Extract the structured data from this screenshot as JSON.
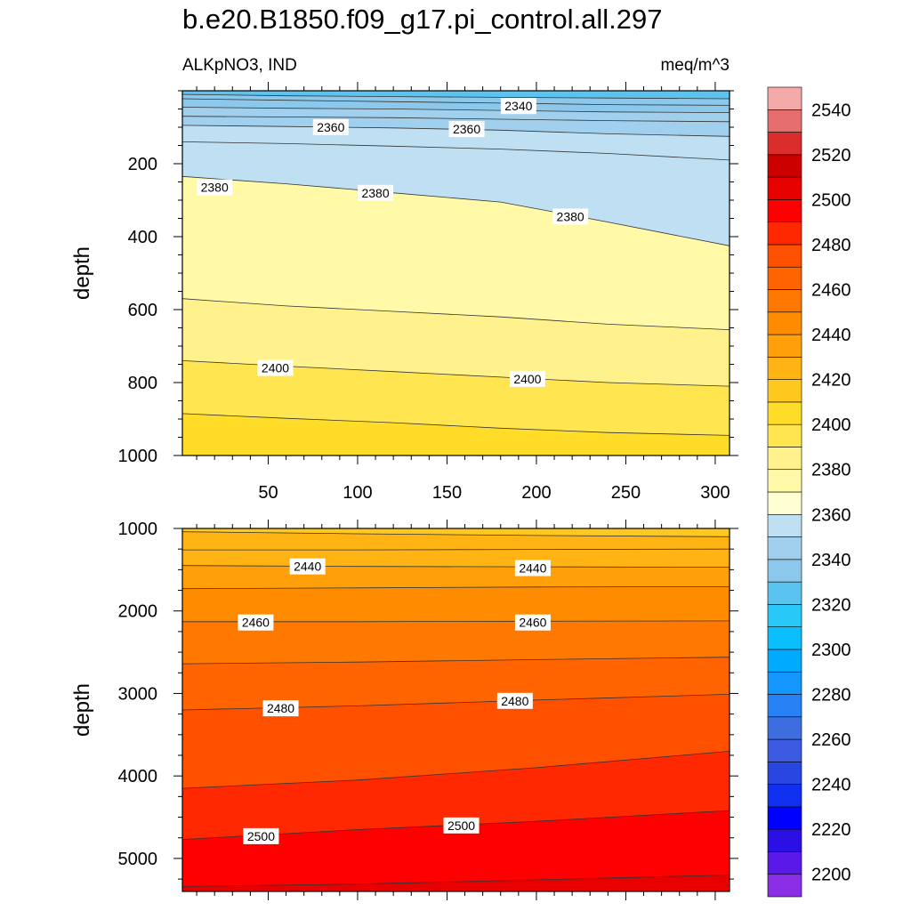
{
  "title": "b.e20.B1850.f09_g17.pi_control.all.297",
  "variable_label": "ALKpNO3, IND",
  "units_label": "meq/m^3",
  "chart_data": [
    {
      "type": "contour",
      "panel": "upper",
      "ylabel": "depth",
      "ylim": [
        1000,
        0
      ],
      "xlim": [
        2,
        308
      ],
      "xticks": [
        50,
        100,
        150,
        200,
        250,
        300
      ],
      "yticks": [
        200,
        400,
        600,
        800,
        1000
      ],
      "contours": [
        {
          "level": 2340,
          "x": [
            2,
            60,
            120,
            180,
            240,
            308
          ],
          "y": [
            10,
            14,
            16,
            18,
            20,
            22
          ]
        },
        {
          "level": 2345,
          "x": [
            2,
            60,
            120,
            180,
            240,
            308
          ],
          "y": [
            22,
            26,
            30,
            34,
            38,
            40
          ]
        },
        {
          "level": 2350,
          "x": [
            2,
            60,
            120,
            180,
            240,
            308
          ],
          "y": [
            45,
            48,
            50,
            54,
            58,
            60
          ]
        },
        {
          "level": 2355,
          "x": [
            2,
            60,
            120,
            180,
            240,
            308
          ],
          "y": [
            70,
            72,
            74,
            78,
            82,
            85
          ]
        },
        {
          "level": 2360,
          "x": [
            2,
            60,
            120,
            180,
            240,
            308
          ],
          "y": [
            95,
            98,
            102,
            108,
            118,
            125
          ]
        },
        {
          "level": 2365,
          "x": [
            2,
            60,
            120,
            180,
            240,
            308
          ],
          "y": [
            140,
            145,
            152,
            160,
            172,
            190
          ]
        },
        {
          "level": 2380,
          "x": [
            2,
            60,
            120,
            180,
            240,
            308
          ],
          "y": [
            235,
            255,
            280,
            305,
            360,
            425
          ]
        },
        {
          "level": 2390,
          "x": [
            2,
            60,
            120,
            180,
            240,
            308
          ],
          "y": [
            570,
            590,
            605,
            620,
            640,
            655
          ]
        },
        {
          "level": 2400,
          "x": [
            2,
            60,
            120,
            180,
            240,
            308
          ],
          "y": [
            740,
            755,
            770,
            785,
            800,
            810
          ]
        },
        {
          "level": 2410,
          "x": [
            2,
            60,
            120,
            180,
            240,
            308
          ],
          "y": [
            885,
            898,
            910,
            925,
            937,
            945
          ]
        }
      ],
      "contour_labels": [
        {
          "text": "2340",
          "x": 190,
          "y": 42
        },
        {
          "text": "2360",
          "x": 85,
          "y": 100
        },
        {
          "text": "2360",
          "x": 161,
          "y": 105
        },
        {
          "text": "2380",
          "x": 20,
          "y": 265
        },
        {
          "text": "2380",
          "x": 110,
          "y": 280
        },
        {
          "text": "2380",
          "x": 219,
          "y": 345
        },
        {
          "text": "2400",
          "x": 54,
          "y": 760
        },
        {
          "text": "2400",
          "x": 195,
          "y": 790
        }
      ]
    },
    {
      "type": "contour",
      "panel": "lower",
      "ylabel": "depth",
      "ylim": [
        5400,
        1000
      ],
      "xlim": [
        2,
        308
      ],
      "yticks": [
        1000,
        2000,
        3000,
        4000,
        5000
      ],
      "contours": [
        {
          "level": 2430,
          "x": [
            2,
            100,
            200,
            308
          ],
          "y": [
            1040,
            1065,
            1085,
            1100
          ]
        },
        {
          "level": 2435,
          "x": [
            2,
            100,
            200,
            308
          ],
          "y": [
            1260,
            1260,
            1255,
            1250
          ]
        },
        {
          "level": 2440,
          "x": [
            2,
            100,
            200,
            308
          ],
          "y": [
            1450,
            1460,
            1465,
            1470
          ]
        },
        {
          "level": 2450,
          "x": [
            2,
            100,
            200,
            308
          ],
          "y": [
            1730,
            1720,
            1710,
            1705
          ]
        },
        {
          "level": 2460,
          "x": [
            2,
            100,
            200,
            308
          ],
          "y": [
            2130,
            2130,
            2125,
            2120
          ]
        },
        {
          "level": 2470,
          "x": [
            2,
            100,
            200,
            308
          ],
          "y": [
            2640,
            2620,
            2590,
            2560
          ]
        },
        {
          "level": 2480,
          "x": [
            2,
            100,
            200,
            308
          ],
          "y": [
            3200,
            3150,
            3080,
            3010
          ]
        },
        {
          "level": 2490,
          "x": [
            2,
            100,
            200,
            308
          ],
          "y": [
            4150,
            4050,
            3900,
            3700
          ]
        },
        {
          "level": 2500,
          "x": [
            2,
            100,
            200,
            308
          ],
          "y": [
            4770,
            4650,
            4550,
            4420
          ]
        },
        {
          "level": 2510,
          "x": [
            2,
            100,
            200,
            308
          ],
          "y": [
            5340,
            5310,
            5260,
            5200
          ]
        }
      ],
      "contour_labels": [
        {
          "text": "2440",
          "x": 72,
          "y": 1460
        },
        {
          "text": "2440",
          "x": 198,
          "y": 1480
        },
        {
          "text": "2460",
          "x": 43,
          "y": 2140
        },
        {
          "text": "2460",
          "x": 198,
          "y": 2140
        },
        {
          "text": "2480",
          "x": 57,
          "y": 3180
        },
        {
          "text": "2480",
          "x": 188,
          "y": 3090
        },
        {
          "text": "2500",
          "x": 46,
          "y": 4730
        },
        {
          "text": "2500",
          "x": 158,
          "y": 4600
        }
      ]
    }
  ],
  "colorbar": {
    "levels": [
      2200,
      2210,
      2220,
      2230,
      2240,
      2250,
      2260,
      2270,
      2280,
      2290,
      2300,
      2310,
      2320,
      2330,
      2340,
      2350,
      2360,
      2370,
      2380,
      2390,
      2400,
      2410,
      2420,
      2430,
      2440,
      2450,
      2460,
      2470,
      2480,
      2490,
      2500,
      2510,
      2520,
      2530,
      2540,
      2550
    ],
    "labels": [
      "2200",
      "2220",
      "2240",
      "2260",
      "2280",
      "2300",
      "2320",
      "2340",
      "2360",
      "2380",
      "2400",
      "2420",
      "2440",
      "2460",
      "2480",
      "2500",
      "2520",
      "2540"
    ],
    "colors": [
      "#8b2fe6",
      "#5a19e6",
      "#2b10e6",
      "#0000ff",
      "#1030f0",
      "#2846e0",
      "#3c5ae0",
      "#3c6ee0",
      "#2882f5",
      "#1496ff",
      "#00aaff",
      "#0abeff",
      "#28c8f8",
      "#5ac3f0",
      "#8cc8ec",
      "#a0d0ee",
      "#bee0f2",
      "#ffffd2",
      "#fff9a8",
      "#fff28c",
      "#ffe650",
      "#ffdc28",
      "#ffc81e",
      "#ffb414",
      "#ffa00a",
      "#ff8c00",
      "#ff7800",
      "#ff6400",
      "#ff5000",
      "#ff2800",
      "#ff0000",
      "#e60000",
      "#cd0000",
      "#dc2d2d",
      "#e66e6e",
      "#f5aaaa"
    ]
  }
}
